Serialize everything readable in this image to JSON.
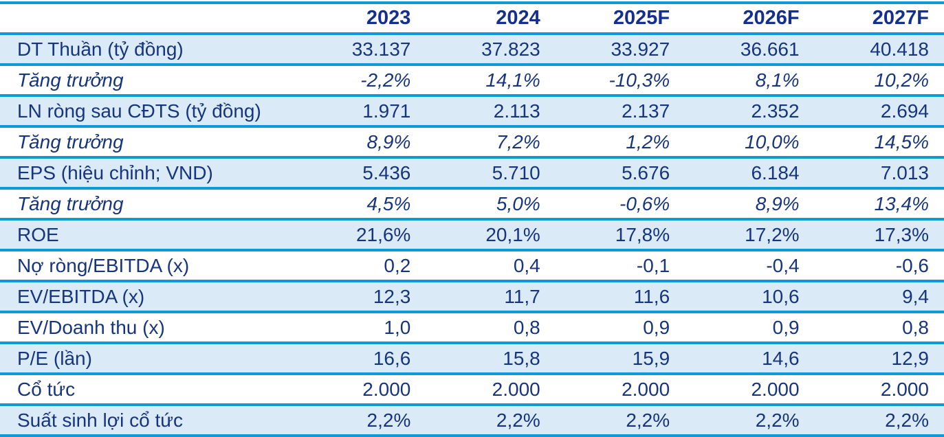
{
  "table": {
    "columns": [
      "",
      "2023",
      "2024",
      "2025F",
      "2026F",
      "2027F"
    ],
    "rows": [
      {
        "label": "DT Thuần (tỷ đồng)",
        "values": [
          "33.137",
          "37.823",
          "33.927",
          "36.661",
          "40.418"
        ],
        "italic": false,
        "shaded": true
      },
      {
        "label": "Tăng trưởng",
        "values": [
          "-2,2%",
          "14,1%",
          "-10,3%",
          "8,1%",
          "10,2%"
        ],
        "italic": true,
        "shaded": false
      },
      {
        "label": "LN ròng sau CĐTS (tỷ đồng)",
        "values": [
          "1.971",
          "2.113",
          "2.137",
          "2.352",
          "2.694"
        ],
        "italic": false,
        "shaded": true
      },
      {
        "label": "Tăng trưởng",
        "values": [
          "8,9%",
          "7,2%",
          "1,2%",
          "10,0%",
          "14,5%"
        ],
        "italic": true,
        "shaded": false
      },
      {
        "label": "EPS (hiệu chỉnh; VND)",
        "values": [
          "5.436",
          "5.710",
          "5.676",
          "6.184",
          "7.013"
        ],
        "italic": false,
        "shaded": true
      },
      {
        "label": "Tăng trưởng",
        "values": [
          "4,5%",
          "5,0%",
          "-0,6%",
          "8,9%",
          "13,4%"
        ],
        "italic": true,
        "shaded": false
      },
      {
        "label": "ROE",
        "values": [
          "21,6%",
          "20,1%",
          "17,8%",
          "17,2%",
          "17,3%"
        ],
        "italic": false,
        "shaded": true
      },
      {
        "label": "Nợ ròng/EBITDA (x)",
        "values": [
          "0,2",
          "0,4",
          "-0,1",
          "-0,4",
          "-0,6"
        ],
        "italic": false,
        "shaded": false
      },
      {
        "label": "EV/EBITDA (x)",
        "values": [
          "12,3",
          "11,7",
          "11,6",
          "10,6",
          "9,4"
        ],
        "italic": false,
        "shaded": true
      },
      {
        "label": "EV/Doanh thu (x)",
        "values": [
          "1,0",
          "0,8",
          "0,9",
          "0,9",
          "0,8"
        ],
        "italic": false,
        "shaded": false
      },
      {
        "label": "P/E (lần)",
        "values": [
          "16,6",
          "15,8",
          "15,9",
          "14,6",
          "12,9"
        ],
        "italic": false,
        "shaded": true
      },
      {
        "label": "Cổ tức",
        "values": [
          "2.000",
          "2.000",
          "2.000",
          "2.000",
          "2.000"
        ],
        "italic": false,
        "shaded": false
      },
      {
        "label": "Suất sinh lợi cổ tức",
        "values": [
          "2,2%",
          "2,2%",
          "2,2%",
          "2,2%",
          "2,2%"
        ],
        "italic": false,
        "shaded": true
      }
    ],
    "colors": {
      "separator_line": "#0d9bd8",
      "shaded_row_bg": "#daeaf6",
      "text_navy": "#17357f",
      "header_navy": "#142f8f"
    }
  }
}
